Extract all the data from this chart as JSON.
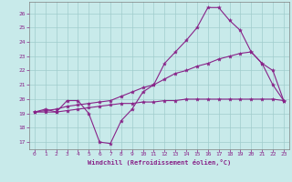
{
  "background_color": "#c8eaea",
  "grid_color": "#a0cccc",
  "line_color": "#882288",
  "xlabel": "Windchill (Refroidissement éolien,°C)",
  "xlim": [
    -0.5,
    23.5
  ],
  "ylim": [
    16.5,
    26.8
  ],
  "yticks": [
    17,
    18,
    19,
    20,
    21,
    22,
    23,
    24,
    25,
    26
  ],
  "xticks": [
    0,
    1,
    2,
    3,
    4,
    5,
    6,
    7,
    8,
    9,
    10,
    11,
    12,
    13,
    14,
    15,
    16,
    17,
    18,
    19,
    20,
    21,
    22,
    23
  ],
  "series_zigzag": [
    19.1,
    19.3,
    19.1,
    19.9,
    19.9,
    19.0,
    17.0,
    16.9,
    18.5,
    19.3,
    20.5,
    21.0,
    22.5,
    23.3,
    24.1,
    25.0,
    26.4,
    26.4,
    25.5,
    24.8,
    23.3,
    22.5,
    21.0,
    19.9
  ],
  "series_upper": [
    19.1,
    19.2,
    19.3,
    19.5,
    19.6,
    19.7,
    19.8,
    19.9,
    20.2,
    20.5,
    20.8,
    21.0,
    21.4,
    21.8,
    22.0,
    22.3,
    22.5,
    22.8,
    23.0,
    23.2,
    23.3,
    22.5,
    22.0,
    19.9
  ],
  "series_lower": [
    19.1,
    19.1,
    19.1,
    19.2,
    19.3,
    19.4,
    19.5,
    19.6,
    19.7,
    19.7,
    19.8,
    19.8,
    19.9,
    19.9,
    20.0,
    20.0,
    20.0,
    20.0,
    20.0,
    20.0,
    20.0,
    20.0,
    20.0,
    19.9
  ]
}
